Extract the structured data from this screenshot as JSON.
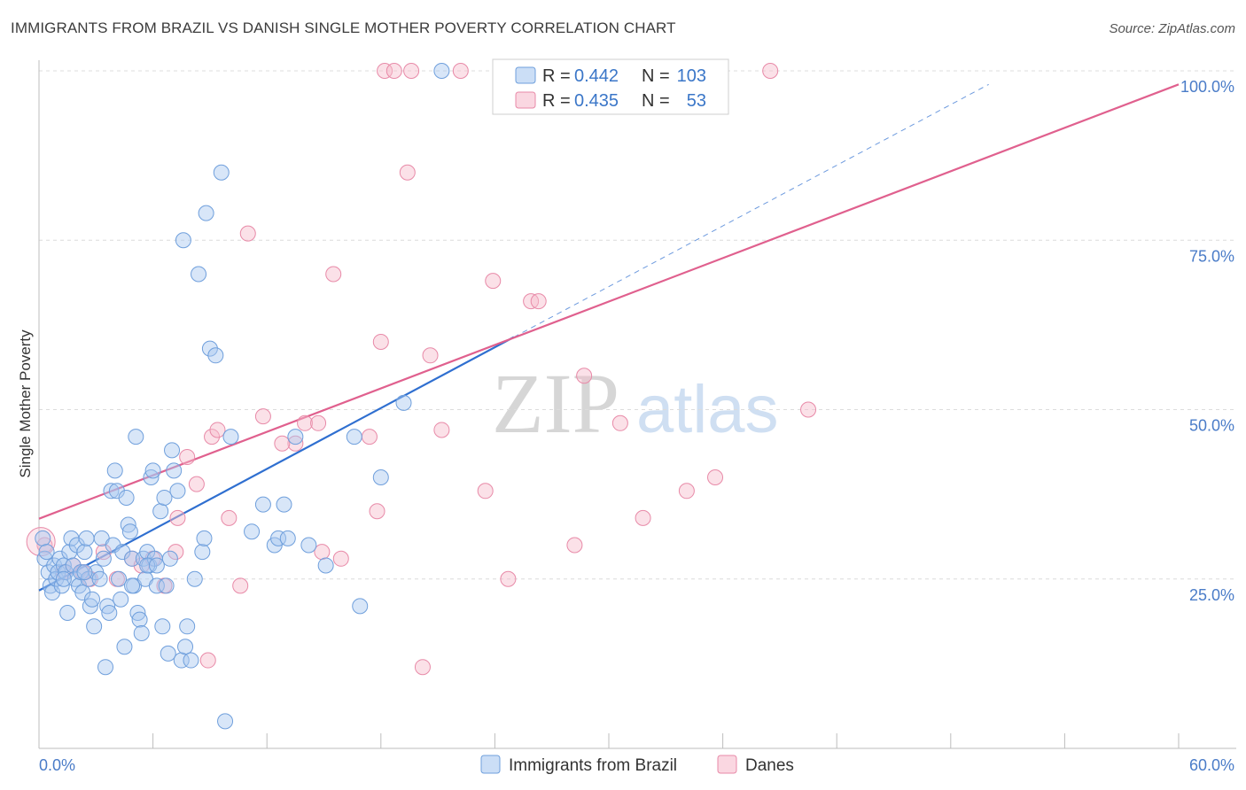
{
  "title": "IMMIGRANTS FROM BRAZIL VS DANISH SINGLE MOTHER POVERTY CORRELATION CHART",
  "source": "Source: ZipAtlas.com",
  "watermark": {
    "zip": "ZIP",
    "atlas": "atlas"
  },
  "legend": {
    "rows": [
      {
        "r_label": "R =",
        "r_value": "0.442",
        "n_label": "N =",
        "n_value": "103"
      },
      {
        "r_label": "R =",
        "r_value": "0.435",
        "n_label": "N =",
        "n_value": "53"
      }
    ]
  },
  "bottom_legend": [
    "Immigrants from Brazil",
    "Danes"
  ],
  "colors": {
    "blue_fill": "#a9c8f0",
    "blue_stroke": "#6f9fdc",
    "blue_line": "#2f6fd0",
    "pink_fill": "#f6bccd",
    "pink_stroke": "#e88aa8",
    "pink_line": "#e0608e",
    "tick_text": "#4a7cc8",
    "value_text": "#3a76c8"
  },
  "chart_data": {
    "type": "scatter",
    "title": "IMMIGRANTS FROM BRAZIL VS DANISH SINGLE MOTHER POVERTY CORRELATION CHART",
    "xlabel": "",
    "ylabel": "Single Mother Poverty",
    "xlim": [
      0,
      60
    ],
    "ylim": [
      0,
      100
    ],
    "x_tick_labels": [
      "0.0%",
      "60.0%"
    ],
    "y_tick_labels": [
      "25.0%",
      "50.0%",
      "75.0%",
      "100.0%"
    ],
    "y_ticks": [
      25,
      50,
      75,
      100
    ],
    "grid": "horizontal dashed",
    "legend_position": "top-center",
    "series": [
      {
        "name": "Immigrants from Brazil",
        "r": 0.442,
        "n": 103,
        "trend": {
          "x0": 0,
          "y0": 23.3,
          "x1": 25,
          "y1": 60.7,
          "dashed_to_x": 50,
          "dashed_to_y": 98
        },
        "points": [
          [
            0.2,
            31
          ],
          [
            0.3,
            28
          ],
          [
            0.4,
            29
          ],
          [
            0.5,
            26
          ],
          [
            0.6,
            24
          ],
          [
            0.7,
            23
          ],
          [
            0.8,
            27
          ],
          [
            0.9,
            25
          ],
          [
            1.0,
            26
          ],
          [
            1.1,
            28
          ],
          [
            1.2,
            24
          ],
          [
            1.3,
            27
          ],
          [
            1.4,
            26
          ],
          [
            1.5,
            20
          ],
          [
            1.6,
            29
          ],
          [
            1.7,
            31
          ],
          [
            1.8,
            27
          ],
          [
            1.9,
            25
          ],
          [
            2.0,
            30
          ],
          [
            2.1,
            24
          ],
          [
            2.2,
            26
          ],
          [
            2.3,
            23
          ],
          [
            2.4,
            29
          ],
          [
            2.5,
            31
          ],
          [
            2.6,
            25
          ],
          [
            2.7,
            21
          ],
          [
            2.8,
            22
          ],
          [
            2.9,
            18
          ],
          [
            3.0,
            26
          ],
          [
            3.2,
            25
          ],
          [
            3.3,
            31
          ],
          [
            3.4,
            28
          ],
          [
            3.5,
            12
          ],
          [
            3.6,
            21
          ],
          [
            3.7,
            20
          ],
          [
            3.8,
            38
          ],
          [
            3.9,
            30
          ],
          [
            4.0,
            41
          ],
          [
            4.1,
            38
          ],
          [
            4.2,
            25
          ],
          [
            4.3,
            22
          ],
          [
            4.4,
            29
          ],
          [
            4.5,
            15
          ],
          [
            4.6,
            37
          ],
          [
            4.7,
            33
          ],
          [
            4.8,
            32
          ],
          [
            4.9,
            28
          ],
          [
            5.0,
            24
          ],
          [
            5.1,
            46
          ],
          [
            5.2,
            20
          ],
          [
            5.3,
            19
          ],
          [
            5.4,
            17
          ],
          [
            5.5,
            28
          ],
          [
            5.6,
            25
          ],
          [
            5.7,
            29
          ],
          [
            5.8,
            27
          ],
          [
            5.9,
            40
          ],
          [
            6.0,
            41
          ],
          [
            6.1,
            28
          ],
          [
            6.2,
            24
          ],
          [
            6.4,
            35
          ],
          [
            6.5,
            18
          ],
          [
            6.6,
            37
          ],
          [
            6.7,
            24
          ],
          [
            6.8,
            14
          ],
          [
            6.9,
            28
          ],
          [
            7.0,
            44
          ],
          [
            7.1,
            41
          ],
          [
            7.3,
            38
          ],
          [
            7.5,
            13
          ],
          [
            7.6,
            75
          ],
          [
            7.7,
            15
          ],
          [
            7.8,
            18
          ],
          [
            8.0,
            13
          ],
          [
            8.2,
            25
          ],
          [
            8.4,
            70
          ],
          [
            8.6,
            29
          ],
          [
            8.7,
            31
          ],
          [
            8.8,
            79
          ],
          [
            9.0,
            59
          ],
          [
            9.3,
            58
          ],
          [
            9.6,
            85
          ],
          [
            9.8,
            4
          ],
          [
            10.1,
            46
          ],
          [
            11.2,
            32
          ],
          [
            11.8,
            36
          ],
          [
            12.4,
            30
          ],
          [
            12.6,
            31
          ],
          [
            12.9,
            36
          ],
          [
            13.1,
            31
          ],
          [
            13.5,
            46
          ],
          [
            14.2,
            30
          ],
          [
            15.1,
            27
          ],
          [
            16.6,
            46
          ],
          [
            16.9,
            21
          ],
          [
            18.0,
            40
          ],
          [
            19.2,
            51
          ],
          [
            21.2,
            100
          ],
          [
            4.9,
            24
          ],
          [
            5.7,
            27
          ],
          [
            6.2,
            27
          ],
          [
            2.4,
            26
          ],
          [
            1.3,
            25
          ]
        ]
      },
      {
        "name": "Danes",
        "r": 0.435,
        "n": 53,
        "trend": {
          "x0": 0,
          "y0": 33.9,
          "x1": 60,
          "y1": 98
        },
        "points": [
          [
            0.3,
            30
          ],
          [
            1.3,
            26
          ],
          [
            1.8,
            27
          ],
          [
            2.3,
            26
          ],
          [
            2.7,
            25
          ],
          [
            3.4,
            29
          ],
          [
            4.1,
            25
          ],
          [
            4.9,
            28
          ],
          [
            5.4,
            27
          ],
          [
            6.0,
            28
          ],
          [
            6.6,
            24
          ],
          [
            7.2,
            29
          ],
          [
            7.3,
            34
          ],
          [
            7.8,
            43
          ],
          [
            8.3,
            39
          ],
          [
            9.1,
            46
          ],
          [
            9.4,
            47
          ],
          [
            10.0,
            34
          ],
          [
            10.6,
            24
          ],
          [
            11.0,
            76
          ],
          [
            11.8,
            49
          ],
          [
            13.5,
            45
          ],
          [
            14.0,
            48
          ],
          [
            14.7,
            48
          ],
          [
            14.9,
            29
          ],
          [
            15.5,
            70
          ],
          [
            15.9,
            28
          ],
          [
            17.4,
            46
          ],
          [
            18.0,
            60
          ],
          [
            18.2,
            100
          ],
          [
            18.7,
            100
          ],
          [
            19.4,
            85
          ],
          [
            19.6,
            100
          ],
          [
            20.2,
            12
          ],
          [
            20.6,
            58
          ],
          [
            21.2,
            47
          ],
          [
            22.2,
            100
          ],
          [
            23.9,
            69
          ],
          [
            24.7,
            25
          ],
          [
            25.9,
            66
          ],
          [
            26.3,
            66
          ],
          [
            28.2,
            30
          ],
          [
            28.7,
            55
          ],
          [
            30.6,
            48
          ],
          [
            31.8,
            34
          ],
          [
            34.1,
            38
          ],
          [
            35.6,
            40
          ],
          [
            38.5,
            100
          ],
          [
            40.5,
            50
          ],
          [
            8.9,
            13
          ],
          [
            12.8,
            45
          ],
          [
            17.8,
            35
          ],
          [
            23.5,
            38
          ]
        ]
      }
    ]
  }
}
